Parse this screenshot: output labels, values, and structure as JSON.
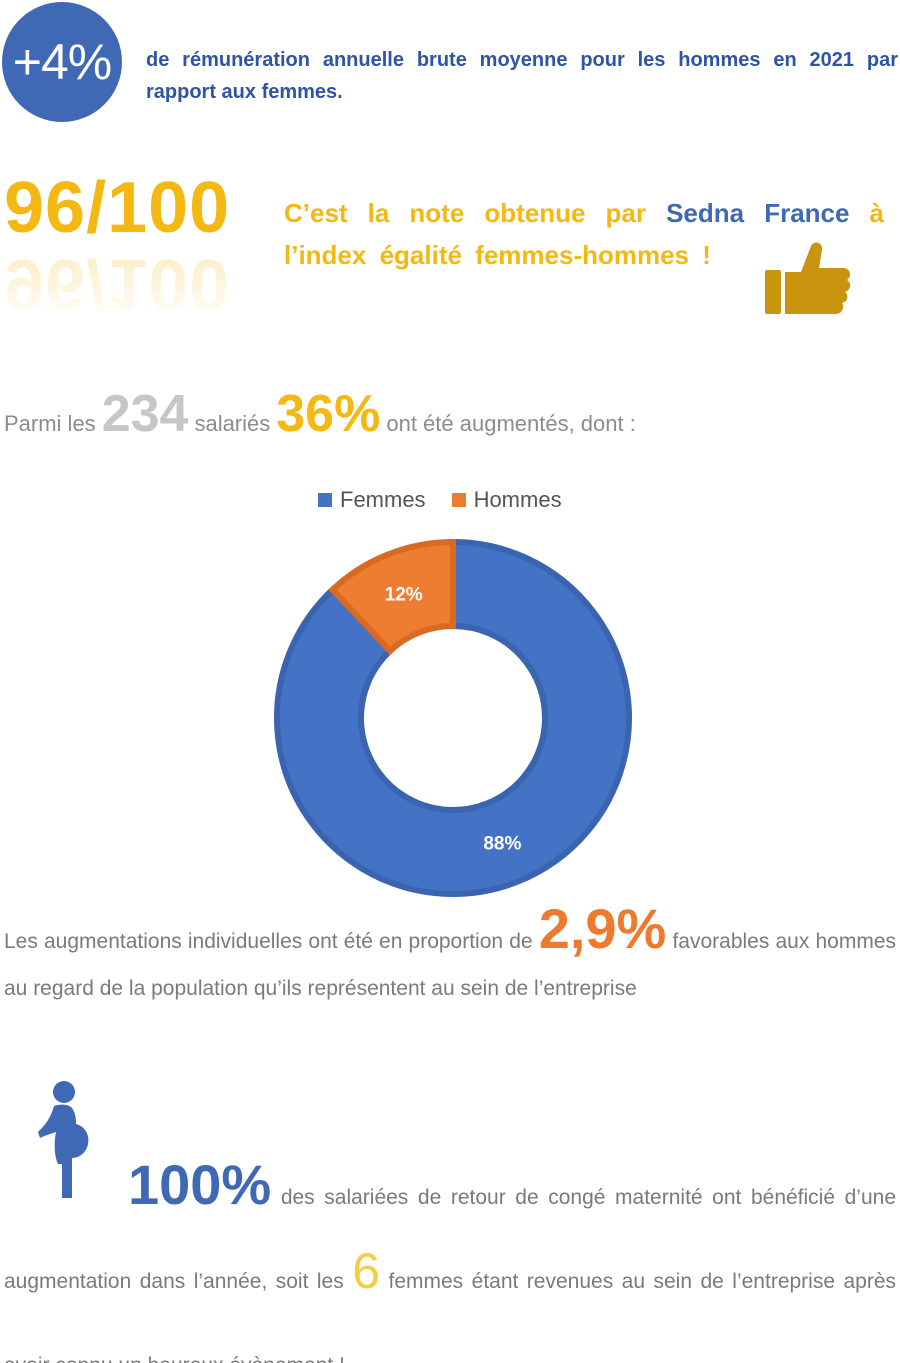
{
  "pay_gap": {
    "value": "+4%",
    "text": "de rémunération annuelle brute moyenne pour les hommes en 2021 par rapport aux femmes."
  },
  "score": {
    "value": "96/100",
    "text_before": "C’est la note obtenue par ",
    "brand": "Sedna France",
    "text_after": " à l’index égalité femmes-hommes !",
    "icon": "thumbs-up-icon"
  },
  "stats": {
    "prefix": "Parmi les",
    "employees": "234",
    "middle": "salariés",
    "raised_pct": "36%",
    "suffix": "ont été augmentés, dont :"
  },
  "chart_data": {
    "type": "pie",
    "donut": true,
    "categories": [
      "Femmes",
      "Hommes"
    ],
    "values": [
      88,
      12
    ],
    "data_labels": [
      "88%",
      "12%"
    ],
    "colors": [
      "#4472c4",
      "#ed7d31"
    ],
    "legend_position": "top"
  },
  "raises": {
    "before": "Les augmentations individuelles ont été en proportion de ",
    "value": "2,9%",
    "after": " favorables aux hommes au regard de la population qu’ils représentent au sein de l’entreprise"
  },
  "maternity": {
    "icon": "pregnant-woman-icon",
    "value": "100%",
    "text1": " des salariées de retour de congé maternité ont bénéficié d’une augmentation dans l’année, soit les ",
    "count": "6",
    "text2": " femmes étant revenues au sein de l’entreprise après avoir connu un heureux évènement !"
  },
  "colors": {
    "blue": "#3f68b5",
    "yellow": "#f3b812",
    "orange": "#ee7a2e",
    "grey_text": "#7a7a7a"
  }
}
